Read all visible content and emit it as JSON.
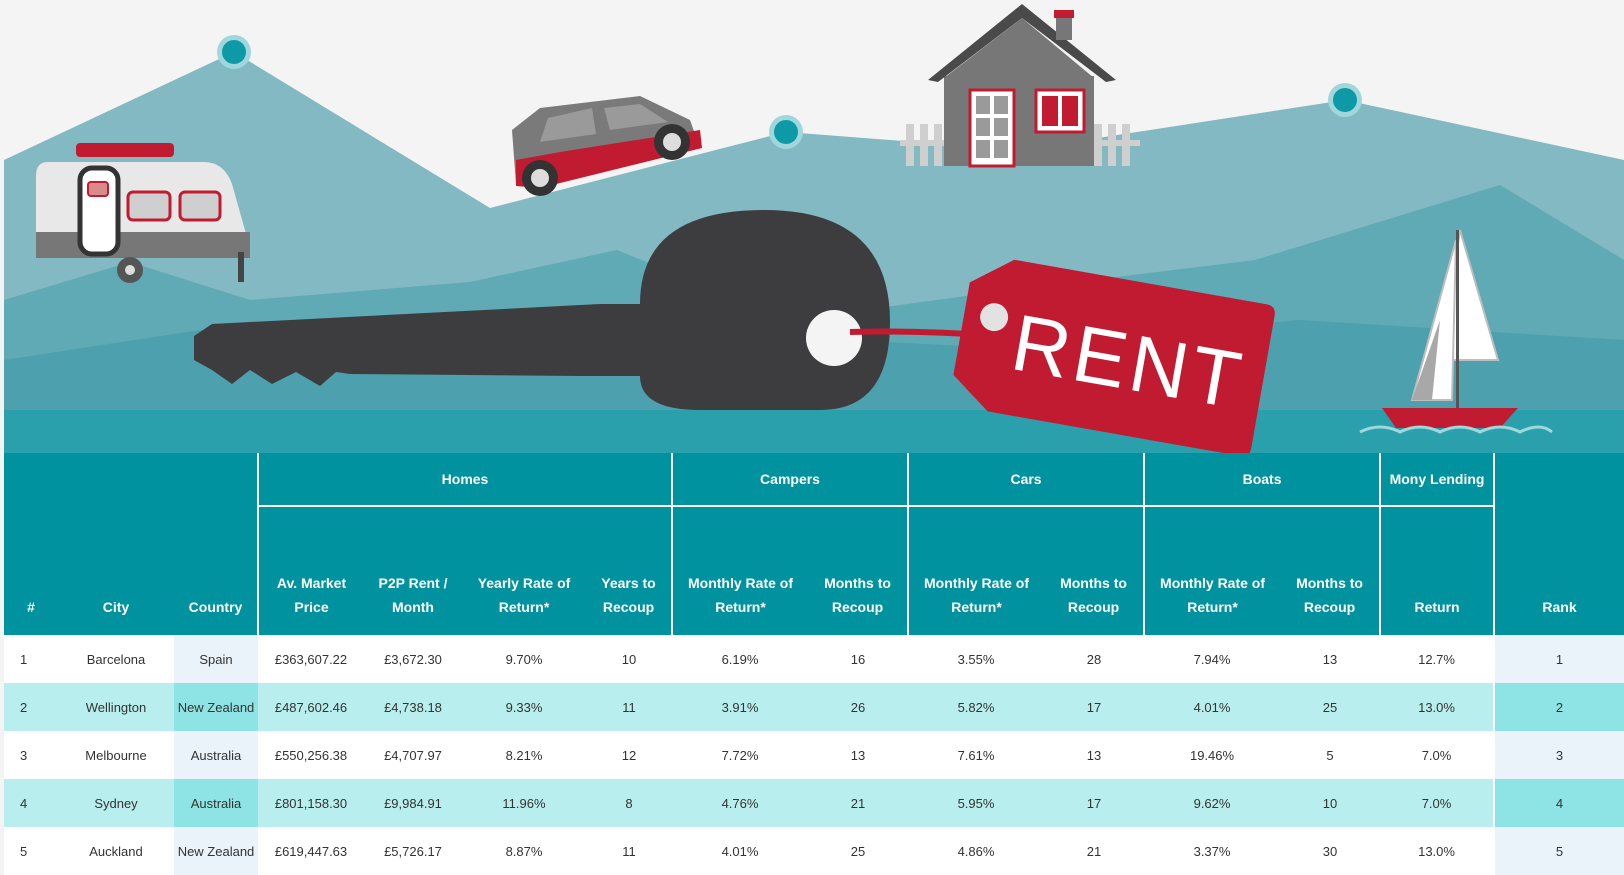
{
  "banner": {
    "tag_text": "RENT"
  },
  "table": {
    "groups": {
      "homes": "Homes",
      "campers": "Campers",
      "cars": "Cars",
      "boats": "Boats",
      "lending": "Mony Lending"
    },
    "columns": {
      "num": "#",
      "city": "City",
      "country": "Country",
      "homes_price": "Av. Market Price",
      "homes_rent": "P2P Rent / Month",
      "homes_rate": "Yearly Rate of Return*",
      "homes_years": "Years to Recoup",
      "campers_rate": "Monthly Rate of Return*",
      "campers_months": "Months to Recoup",
      "cars_rate": "Monthly Rate of Return*",
      "cars_months": "Months to Recoup",
      "boats_rate": "Monthly Rate of Return*",
      "boats_months": "Months to Recoup",
      "lending_return": "Return",
      "rank": "Rank"
    },
    "rows": [
      [
        "1",
        "Barcelona",
        "Spain",
        "£363,607.22",
        "£3,672.30",
        "9.70%",
        "10",
        "6.19%",
        "16",
        "3.55%",
        "28",
        "7.94%",
        "13",
        "12.7%",
        "1"
      ],
      [
        "2",
        "Wellington",
        "New Zealand",
        "£487,602.46",
        "£4,738.18",
        "9.33%",
        "11",
        "3.91%",
        "26",
        "5.82%",
        "17",
        "4.01%",
        "25",
        "13.0%",
        "2"
      ],
      [
        "3",
        "Melbourne",
        "Australia",
        "£550,256.38",
        "£4,707.97",
        "8.21%",
        "12",
        "7.72%",
        "13",
        "7.61%",
        "13",
        "19.46%",
        "5",
        "7.0%",
        "3"
      ],
      [
        "4",
        "Sydney",
        "Australia",
        "£801,158.30",
        "£9,984.91",
        "11.96%",
        "8",
        "4.76%",
        "21",
        "5.95%",
        "17",
        "9.62%",
        "10",
        "7.0%",
        "4"
      ],
      [
        "5",
        "Auckland",
        "New Zealand",
        "£619,447.63",
        "£5,726.17",
        "8.87%",
        "11",
        "4.01%",
        "25",
        "4.86%",
        "21",
        "3.37%",
        "30",
        "13.0%",
        "5"
      ]
    ]
  },
  "colors": {
    "header_teal": "#00929f",
    "row_light_teal": "#b9eeee",
    "accent_red": "#c11b32",
    "mountain_teal": "#7fb5be"
  }
}
